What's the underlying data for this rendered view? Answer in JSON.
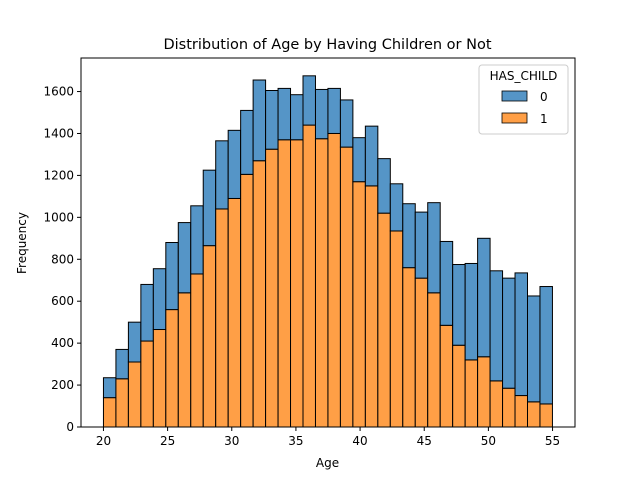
{
  "chart_data": {
    "type": "bar",
    "stacked": true,
    "title": "Distribution of Age by Having Children or Not",
    "xlabel": "Age",
    "ylabel": "Frequency",
    "xlim": [
      18.25,
      56.75
    ],
    "ylim": [
      0,
      1760
    ],
    "xticks": [
      20,
      25,
      30,
      35,
      40,
      45,
      50,
      55
    ],
    "yticks": [
      0,
      200,
      400,
      600,
      800,
      1000,
      1200,
      1400,
      1600
    ],
    "bin_start": 20,
    "bin_width": 0.972,
    "legend": {
      "title": "HAS_CHILD",
      "position": "top-right"
    },
    "series": [
      {
        "name": "1",
        "color": "#ff9a3c",
        "values": [
          140,
          230,
          310,
          410,
          465,
          560,
          640,
          730,
          865,
          1040,
          1090,
          1205,
          1270,
          1325,
          1370,
          1370,
          1440,
          1375,
          1400,
          1335,
          1170,
          1150,
          1020,
          935,
          760,
          710,
          640,
          485,
          390,
          320,
          335,
          220,
          185,
          150,
          120,
          110
        ]
      },
      {
        "name": "0",
        "color": "#4c8fc4",
        "values": [
          95,
          140,
          190,
          270,
          290,
          320,
          335,
          325,
          360,
          325,
          325,
          305,
          385,
          280,
          245,
          215,
          235,
          235,
          215,
          225,
          210,
          285,
          260,
          225,
          305,
          315,
          430,
          400,
          385,
          460,
          565,
          525,
          525,
          585,
          505,
          560
        ]
      }
    ]
  }
}
